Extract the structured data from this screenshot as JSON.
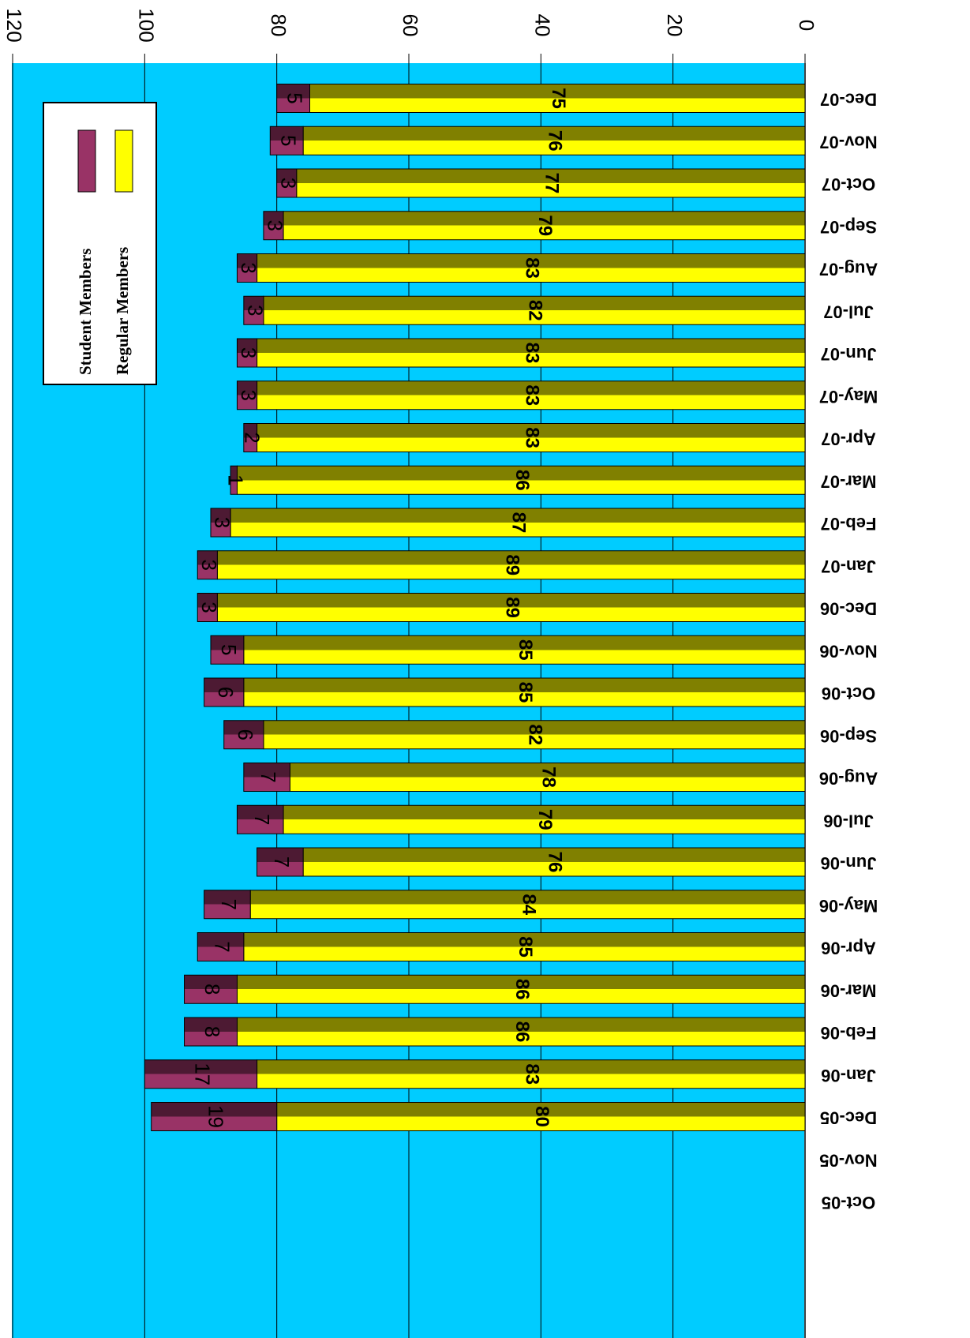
{
  "chart_data": {
    "type": "bar",
    "stacked": true,
    "categories": [
      "Oct-05",
      "Nov-05",
      "Dec-05",
      "Jan-06",
      "Feb-06",
      "Mar-06",
      "Apr-06",
      "May-06",
      "Jun-06",
      "Jul-06",
      "Aug-06",
      "Sep-06",
      "Oct-06",
      "Nov-06",
      "Dec-06",
      "Jan-07",
      "Feb-07",
      "Mar-07",
      "Apr-07",
      "May-07",
      "Jun-07",
      "Jul-07",
      "Aug-07",
      "Sep-07",
      "Oct-07",
      "Nov-07",
      "Dec-07"
    ],
    "series": [
      {
        "name": "Regular Members",
        "color": "#ffff00",
        "values": [
          null,
          null,
          80,
          83,
          86,
          86,
          85,
          84,
          76,
          79,
          78,
          82,
          85,
          85,
          89,
          89,
          87,
          86,
          83,
          83,
          83,
          82,
          83,
          79,
          77,
          76,
          75
        ]
      },
      {
        "name": "Student Members",
        "color": "#993366",
        "values": [
          null,
          null,
          19,
          17,
          8,
          8,
          7,
          7,
          7,
          7,
          7,
          6,
          6,
          5,
          3,
          3,
          3,
          1,
          2,
          3,
          3,
          3,
          3,
          3,
          3,
          5,
          5
        ]
      }
    ],
    "ylim": [
      0,
      120
    ],
    "yticks": [
      0,
      20,
      40,
      60,
      80,
      100,
      120
    ],
    "grid": true
  }
}
